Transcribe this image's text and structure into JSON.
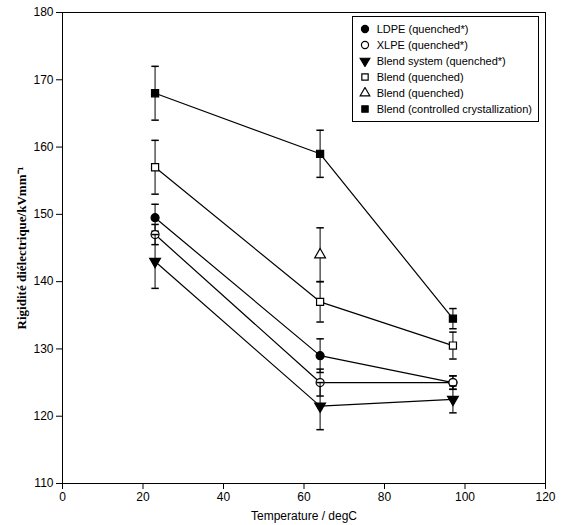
{
  "chart_data": {
    "type": "line",
    "x_label": "Temperature / degC",
    "y_label": "Rigidité diélectrique/kVmm⁻¹",
    "x": [
      23,
      64,
      97
    ],
    "xlim": [
      0,
      120
    ],
    "xticks": [
      0,
      20,
      40,
      60,
      80,
      100,
      120
    ],
    "ylim": [
      110,
      180
    ],
    "yticks": [
      110,
      120,
      130,
      140,
      150,
      160,
      170,
      180
    ],
    "grid": false,
    "legend": "upper right",
    "series": [
      {
        "name": "LDPE (quenched*)",
        "color": "#000000",
        "marker": "circle",
        "line_style": "solid",
        "values": [
          149.5,
          129,
          125
        ],
        "errors": [
          2,
          2.5,
          1
        ]
      },
      {
        "name": "XLPE (quenched*)",
        "color": "#000000",
        "marker": "circle-open",
        "line_style": "solid",
        "values": [
          147,
          125,
          125
        ],
        "errors": [
          1.5,
          2,
          1
        ]
      },
      {
        "name": "Blend system (quenched*)",
        "color": "#000000",
        "marker": "triangle-down",
        "line_style": "solid",
        "values": [
          143,
          121.5,
          122.5
        ],
        "errors": [
          4,
          3.5,
          2
        ]
      },
      {
        "name": "Blend (quenched)",
        "color": "#000000",
        "marker": "square-open",
        "line_style": "solid",
        "values": [
          157,
          137,
          130.5
        ],
        "errors": [
          4,
          3,
          2
        ]
      },
      {
        "name": "Blend (quenched)",
        "color": "#000000",
        "marker": "triangle-open",
        "line_style": "solid",
        "values": [
          null,
          144,
          null
        ],
        "errors": [
          null,
          4,
          null
        ]
      },
      {
        "name": "Blend (controlled crystallization)",
        "color": "#000000",
        "marker": "square",
        "line_style": "solid",
        "values": [
          168,
          159,
          134.5
        ],
        "errors": [
          4,
          3.5,
          1.5
        ]
      }
    ]
  }
}
